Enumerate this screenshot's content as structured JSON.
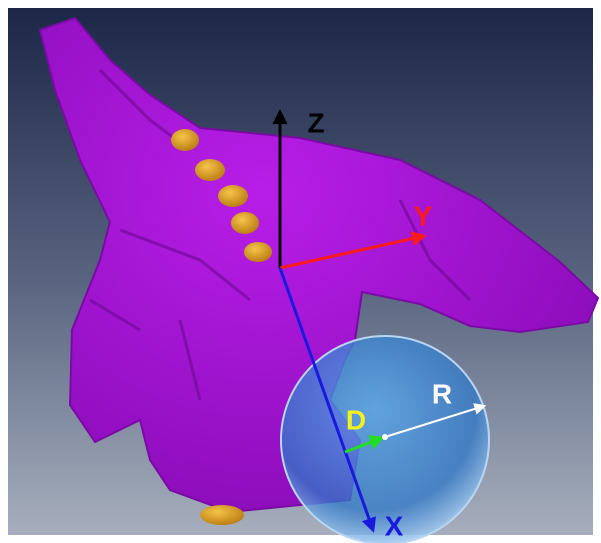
{
  "axes": {
    "z": "Z",
    "y": "Y",
    "x": "X"
  },
  "labels": {
    "d": "D",
    "r": "R"
  }
}
